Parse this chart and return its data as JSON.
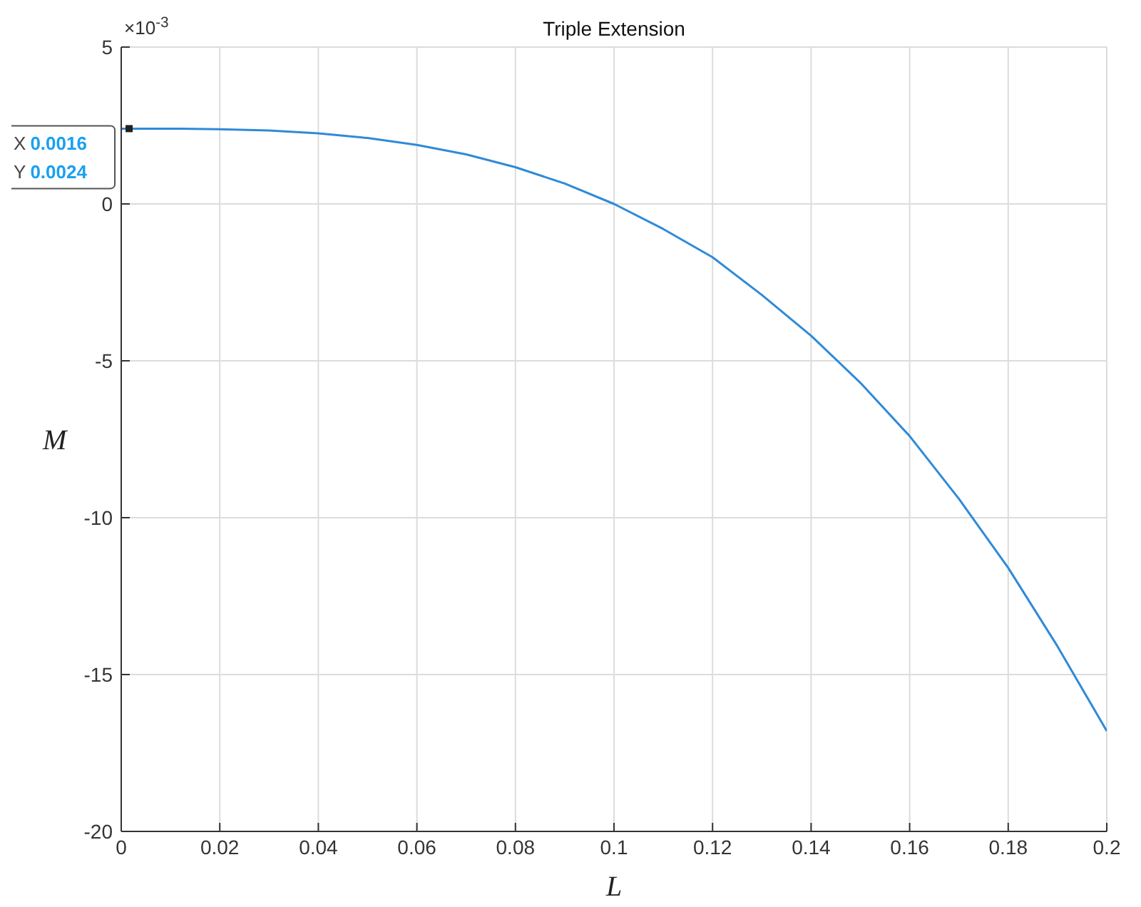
{
  "chart_data": {
    "type": "line",
    "title": "Triple Extension",
    "xlabel": "L",
    "ylabel": "M",
    "x": [
      0,
      0.01,
      0.02,
      0.03,
      0.04,
      0.05,
      0.06,
      0.07,
      0.08,
      0.09,
      0.1,
      0.11,
      0.12,
      0.13,
      0.14,
      0.15,
      0.16,
      0.17,
      0.18,
      0.19,
      0.2
    ],
    "series": [
      {
        "color": "#2f8ad8",
        "values": [
          2.4,
          2.4,
          2.38,
          2.34,
          2.25,
          2.1,
          1.88,
          1.58,
          1.17,
          0.65,
          0,
          -0.8,
          -1.7,
          -2.9,
          -4.2,
          -5.7,
          -7.4,
          -9.4,
          -11.6,
          -14.1,
          -16.8
        ]
      }
    ],
    "xlim": [
      0,
      0.2
    ],
    "xticks": [
      0,
      0.02,
      0.04,
      0.06,
      0.08,
      0.1,
      0.12,
      0.14,
      0.16,
      0.18,
      0.2
    ],
    "ylim": [
      -20,
      5
    ],
    "yticks": [
      -20,
      -15,
      -10,
      -5,
      0,
      5
    ],
    "grid": true,
    "marker": "none",
    "line_style": "solid",
    "annotations": [
      "×10$^{-3}$",
      {
        "text": "X 0.0016\nY 0.0024",
        "x": 0.0016,
        "y": 2.4
      }
    ]
  }
}
